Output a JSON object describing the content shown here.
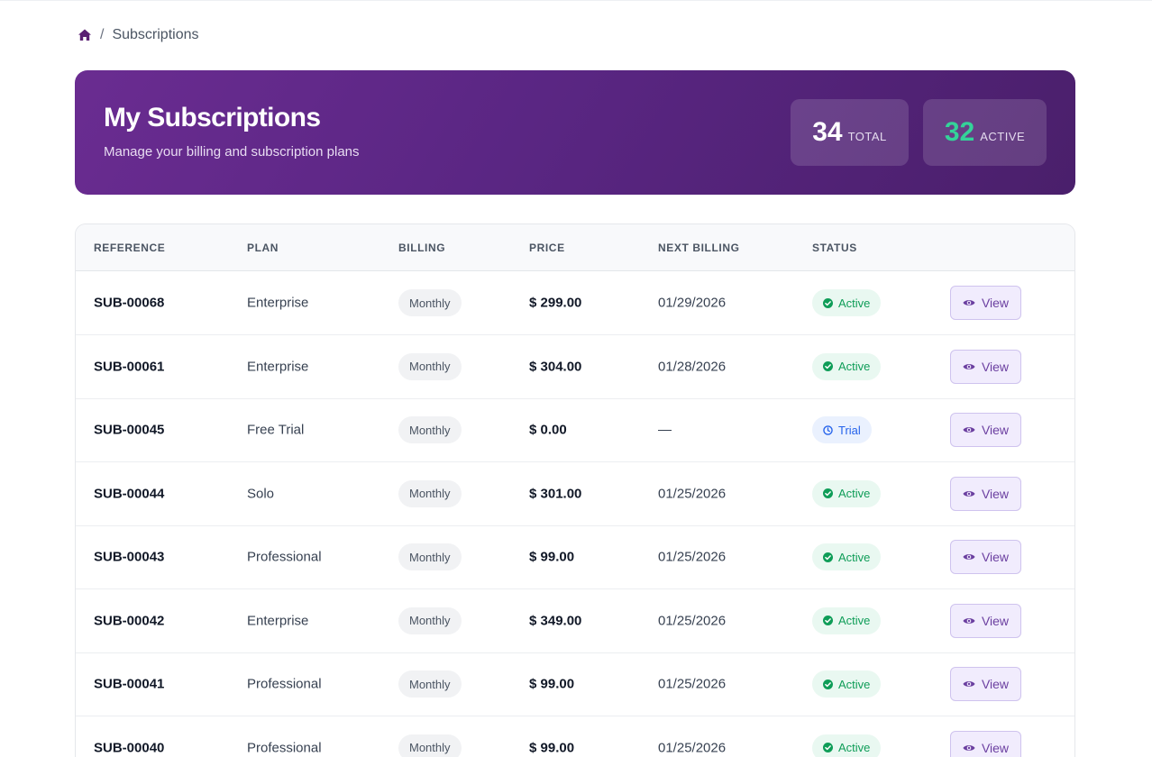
{
  "breadcrumb": {
    "home_icon": "home-icon",
    "separator": "/",
    "current": "Subscriptions"
  },
  "hero": {
    "title": "My Subscriptions",
    "subtitle": "Manage your billing and subscription plans",
    "total_count": "34",
    "total_label": "TOTAL",
    "active_count": "32",
    "active_label": "ACTIVE",
    "colors": {
      "gradient_start": "#6a2c91",
      "gradient_end": "#4a1f6b",
      "active_count": "#34d399"
    }
  },
  "table": {
    "headers": [
      "REFERENCE",
      "PLAN",
      "BILLING",
      "PRICE",
      "NEXT BILLING",
      "STATUS",
      ""
    ],
    "rows": [
      {
        "reference": "SUB-00068",
        "plan": "Enterprise",
        "billing": "Monthly",
        "price": "$ 299.00",
        "next_billing": "01/29/2026",
        "status": "Active",
        "status_kind": "active",
        "action": "View"
      },
      {
        "reference": "SUB-00061",
        "plan": "Enterprise",
        "billing": "Monthly",
        "price": "$ 304.00",
        "next_billing": "01/28/2026",
        "status": "Active",
        "status_kind": "active",
        "action": "View"
      },
      {
        "reference": "SUB-00045",
        "plan": "Free Trial",
        "billing": "Monthly",
        "price": "$ 0.00",
        "next_billing": "—",
        "status": "Trial",
        "status_kind": "trial",
        "action": "View"
      },
      {
        "reference": "SUB-00044",
        "plan": "Solo",
        "billing": "Monthly",
        "price": "$ 301.00",
        "next_billing": "01/25/2026",
        "status": "Active",
        "status_kind": "active",
        "action": "View"
      },
      {
        "reference": "SUB-00043",
        "plan": "Professional",
        "billing": "Monthly",
        "price": "$ 99.00",
        "next_billing": "01/25/2026",
        "status": "Active",
        "status_kind": "active",
        "action": "View"
      },
      {
        "reference": "SUB-00042",
        "plan": "Enterprise",
        "billing": "Monthly",
        "price": "$ 349.00",
        "next_billing": "01/25/2026",
        "status": "Active",
        "status_kind": "active",
        "action": "View"
      },
      {
        "reference": "SUB-00041",
        "plan": "Professional",
        "billing": "Monthly",
        "price": "$ 99.00",
        "next_billing": "01/25/2026",
        "status": "Active",
        "status_kind": "active",
        "action": "View"
      },
      {
        "reference": "SUB-00040",
        "plan": "Professional",
        "billing": "Monthly",
        "price": "$ 99.00",
        "next_billing": "01/25/2026",
        "status": "Active",
        "status_kind": "active",
        "action": "View"
      }
    ],
    "colors": {
      "active": "#0f9d58",
      "trial": "#2563eb",
      "view": "#6b3fa0"
    }
  }
}
